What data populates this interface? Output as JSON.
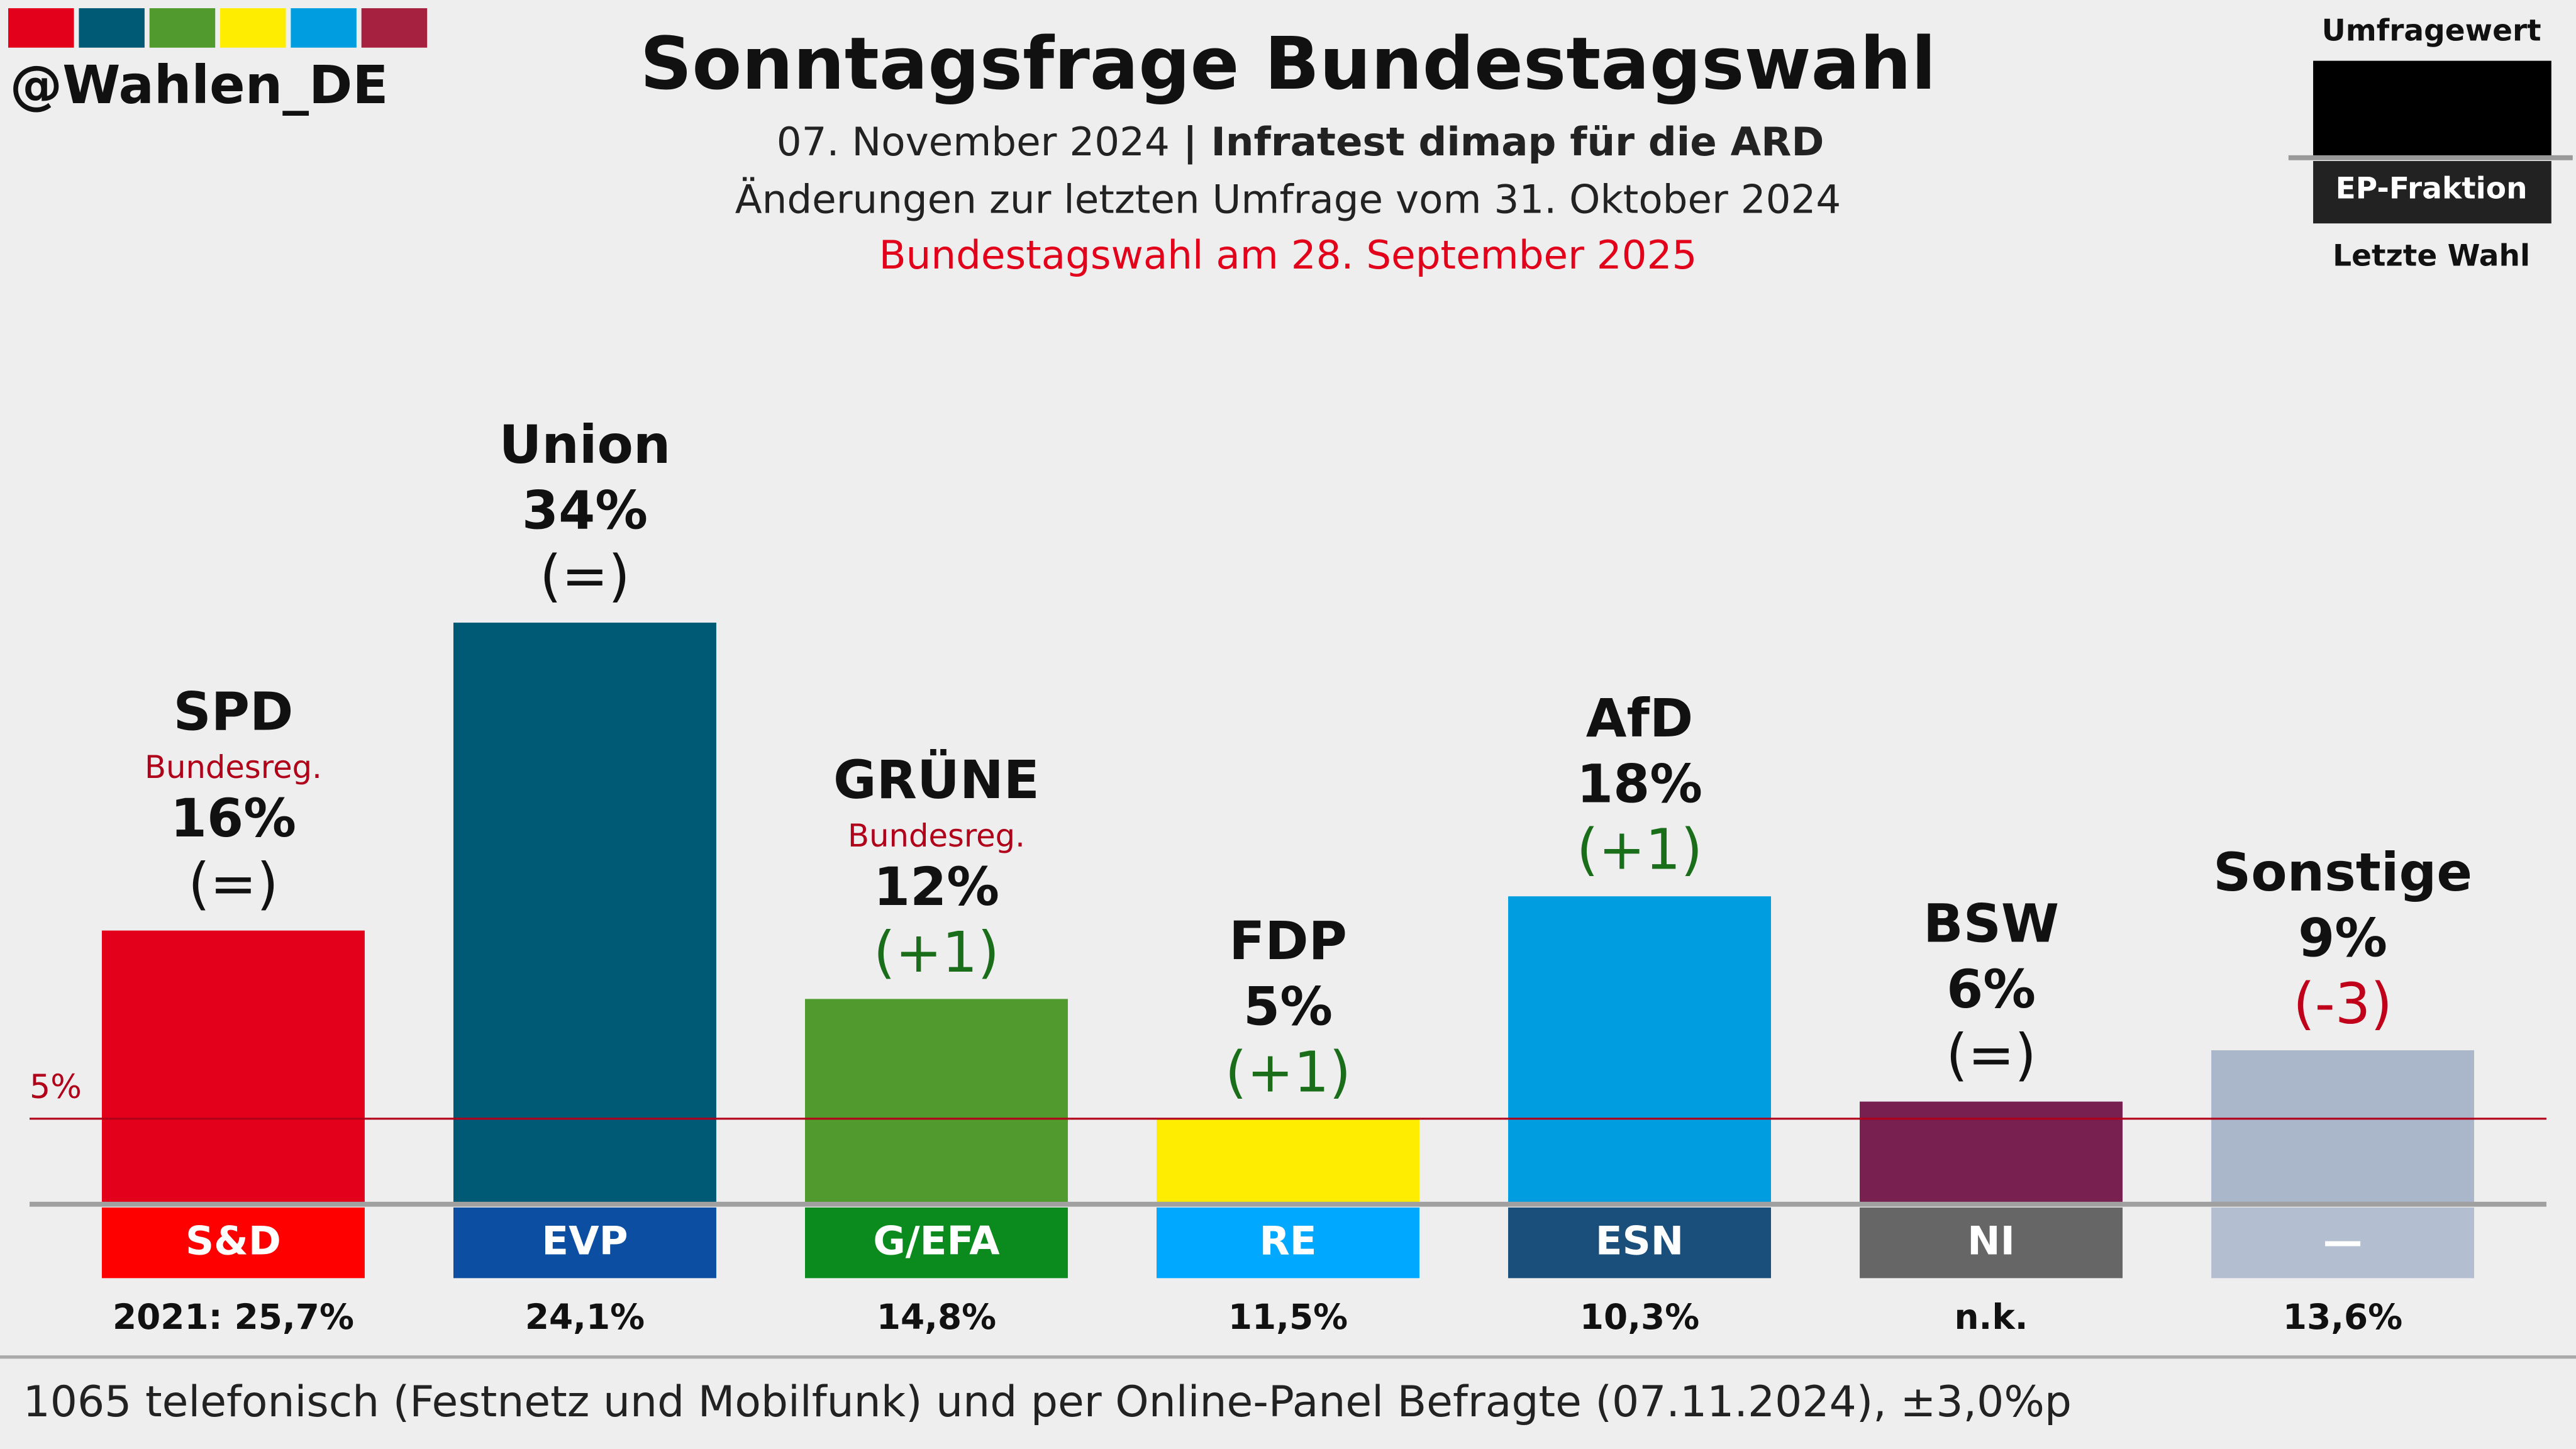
{
  "header": {
    "handle": "@Wahlen_DE",
    "legend": {
      "poll": "Umfragewert",
      "group": "EP-Fraktion",
      "last": "Letzte Wahl"
    }
  },
  "chart_data": {
    "type": "bar",
    "title": "Sonntagsfrage Bundestagswahl",
    "subtitle_date": "07. November 2024",
    "subtitle_source": "| Infratest dimap für die ARD",
    "subtitle_changes": "Änderungen zur letzten Umfrage vom 31. Oktober 2024",
    "subtitle_election": "Bundestagswahl am 28. September 2025",
    "categories": [
      "SPD",
      "Union",
      "GRÜNE",
      "FDP",
      "AfD",
      "BSW",
      "Sonstige"
    ],
    "values": [
      16,
      34,
      12,
      5,
      18,
      6,
      9
    ],
    "value_labels": [
      "16%",
      "34%",
      "12%",
      "5%",
      "18%",
      "6%",
      "9%"
    ],
    "colors": [
      "#e2001a",
      "#005a75",
      "#509a2e",
      "#ffed00",
      "#009ee0",
      "#782151",
      "#aab7cb"
    ],
    "notes": [
      "Bundesreg.",
      null,
      "Bundesreg.",
      null,
      null,
      null,
      null
    ],
    "changes": [
      "(=)",
      "(=)",
      "(+1)",
      "(+1)",
      "(+1)",
      "(=)",
      "(-3)"
    ],
    "change_colors": [
      "#111111",
      "#111111",
      "#1a6e1a",
      "#1a6e1a",
      "#1a6e1a",
      "#111111",
      "#c0001a"
    ],
    "groups": [
      "S&D",
      "EVP",
      "G/EFA",
      "RE",
      "ESN",
      "NI",
      "—"
    ],
    "group_colors": [
      "#ff0000",
      "#0b4ea2",
      "#0b8a1e",
      "#00a8ff",
      "#1b4f7b",
      "#666666",
      "#b3bfd1"
    ],
    "last_election": [
      "2021: 25,7%",
      "24,1%",
      "14,8%",
      "11,5%",
      "10,3%",
      "n.k.",
      "13,6%"
    ],
    "threshold": {
      "value": 5,
      "label": "5%"
    },
    "ylim": [
      0,
      34
    ],
    "footnote": "1065 telefonisch (Festnetz und Mobilfunk) und per Online-Panel Befragte (07.11.2024), ±3,0%p"
  }
}
